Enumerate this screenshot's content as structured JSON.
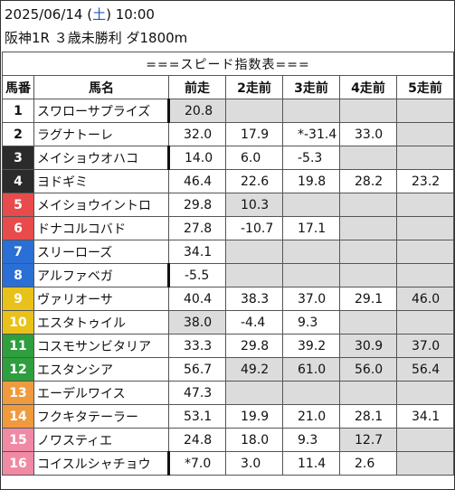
{
  "header": {
    "date": "2025/06/14 (",
    "weekday": "土",
    "time": ") 10:00",
    "race": "阪神1R ３歳未勝利 ダ1800m"
  },
  "table_title": "===スピード指数表===",
  "columns": [
    "馬番",
    "馬名",
    "前走",
    "2走前",
    "3走前",
    "4走前",
    "5走前"
  ],
  "rows": [
    {
      "num": "1",
      "name": "スワローサプライズ",
      "mark": true,
      "bg": "#ffffff",
      "fg": "#111111",
      "vals": [
        "20.8",
        "",
        "",
        "",
        ""
      ],
      "gray": [
        true,
        true,
        true,
        true,
        true
      ]
    },
    {
      "num": "2",
      "name": "ラグナトーレ",
      "mark": false,
      "bg": "#ffffff",
      "fg": "#111111",
      "vals": [
        "32.0",
        "17.9",
        "*-31.4",
        "33.0",
        ""
      ],
      "gray": [
        false,
        false,
        false,
        false,
        true
      ]
    },
    {
      "num": "3",
      "name": "メイショウオハコ",
      "mark": true,
      "bg": "#2b2b2b",
      "fg": "#ffffff",
      "vals": [
        "14.0",
        "6.0",
        "-5.3",
        "",
        ""
      ],
      "gray": [
        false,
        false,
        false,
        true,
        true
      ]
    },
    {
      "num": "4",
      "name": "ヨドギミ",
      "mark": false,
      "bg": "#2b2b2b",
      "fg": "#ffffff",
      "vals": [
        "46.4",
        "22.6",
        "19.8",
        "28.2",
        "23.2"
      ],
      "gray": [
        false,
        false,
        false,
        false,
        false
      ]
    },
    {
      "num": "5",
      "name": "メイショウイントロ",
      "mark": false,
      "bg": "#e84b4b",
      "fg": "#ffffff",
      "vals": [
        "29.8",
        "10.3",
        "",
        "",
        ""
      ],
      "gray": [
        false,
        true,
        true,
        true,
        true
      ]
    },
    {
      "num": "6",
      "name": "ドナコルコバド",
      "mark": false,
      "bg": "#e84b4b",
      "fg": "#ffffff",
      "vals": [
        "27.8",
        "-10.7",
        "17.1",
        "",
        ""
      ],
      "gray": [
        false,
        false,
        false,
        true,
        true
      ]
    },
    {
      "num": "7",
      "name": "スリーローズ",
      "mark": false,
      "bg": "#2a6fd6",
      "fg": "#ffffff",
      "vals": [
        "34.1",
        "",
        "",
        "",
        ""
      ],
      "gray": [
        false,
        true,
        true,
        true,
        true
      ]
    },
    {
      "num": "8",
      "name": "アルファベガ",
      "mark": true,
      "bg": "#2a6fd6",
      "fg": "#ffffff",
      "vals": [
        "-5.5",
        "",
        "",
        "",
        ""
      ],
      "gray": [
        false,
        true,
        true,
        true,
        true
      ]
    },
    {
      "num": "9",
      "name": "ヴァリオーサ",
      "mark": false,
      "bg": "#e8c21a",
      "fg": "#ffffff",
      "vals": [
        "40.4",
        "38.3",
        "37.0",
        "29.1",
        "46.0"
      ],
      "gray": [
        false,
        false,
        false,
        false,
        true
      ]
    },
    {
      "num": "10",
      "name": "エスタトゥイル",
      "mark": false,
      "bg": "#e8c21a",
      "fg": "#ffffff",
      "vals": [
        "38.0",
        "-4.4",
        "9.3",
        "",
        ""
      ],
      "gray": [
        true,
        false,
        false,
        true,
        true
      ]
    },
    {
      "num": "11",
      "name": "コスモサンビタリア",
      "mark": false,
      "bg": "#2e9e3e",
      "fg": "#ffffff",
      "vals": [
        "33.3",
        "29.8",
        "39.2",
        "30.9",
        "37.0"
      ],
      "gray": [
        false,
        false,
        false,
        true,
        true
      ]
    },
    {
      "num": "12",
      "name": "エスタンシア",
      "mark": false,
      "bg": "#2e9e3e",
      "fg": "#ffffff",
      "vals": [
        "56.7",
        "49.2",
        "61.0",
        "56.0",
        "56.4"
      ],
      "gray": [
        false,
        true,
        true,
        true,
        true
      ]
    },
    {
      "num": "13",
      "name": "エーデルワイス",
      "mark": false,
      "bg": "#f09a3e",
      "fg": "#ffffff",
      "vals": [
        "47.3",
        "",
        "",
        "",
        ""
      ],
      "gray": [
        false,
        true,
        true,
        true,
        true
      ]
    },
    {
      "num": "14",
      "name": "フクキタテーラー",
      "mark": false,
      "bg": "#f09a3e",
      "fg": "#ffffff",
      "vals": [
        "53.1",
        "19.9",
        "21.0",
        "28.1",
        "34.1"
      ],
      "gray": [
        false,
        false,
        false,
        false,
        false
      ]
    },
    {
      "num": "15",
      "name": "ノワスティエ",
      "mark": false,
      "bg": "#f08aa4",
      "fg": "#ffffff",
      "vals": [
        "24.8",
        "18.0",
        "9.3",
        "12.7",
        ""
      ],
      "gray": [
        false,
        false,
        false,
        true,
        true
      ]
    },
    {
      "num": "16",
      "name": "コイスルシャチョウ",
      "mark": true,
      "bg": "#f08aa4",
      "fg": "#ffffff",
      "vals": [
        "*7.0",
        "3.0",
        "11.4",
        "2.6",
        ""
      ],
      "gray": [
        false,
        false,
        false,
        false,
        true
      ]
    }
  ]
}
